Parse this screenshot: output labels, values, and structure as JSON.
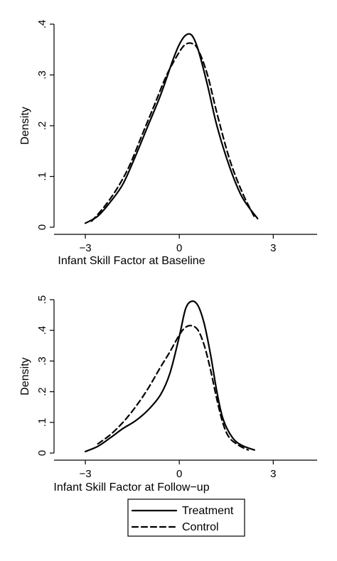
{
  "chart_data": [
    {
      "type": "line",
      "xlabel": "Infant Skill Factor at Baseline",
      "ylabel": "Density",
      "xlim": [
        -4,
        4.4
      ],
      "ylim": [
        0,
        0.4
      ],
      "xticks": [
        -3,
        0,
        3
      ],
      "xtick_labels": [
        "−3",
        "0",
        "3"
      ],
      "yticks": [
        0,
        0.1,
        0.2,
        0.3,
        0.4
      ],
      "ytick_labels": [
        "0",
        ".1",
        ".2",
        ".3",
        ".4"
      ],
      "grid": false,
      "series": [
        {
          "name": "Treatment",
          "dash": "solid",
          "x": [
            -3.0,
            -2.6,
            -2.2,
            -1.8,
            -1.4,
            -1.0,
            -0.6,
            -0.2,
            0.0,
            0.2,
            0.4,
            0.6,
            0.9,
            1.2,
            1.6,
            2.0,
            2.5
          ],
          "y": [
            0.008,
            0.022,
            0.05,
            0.085,
            0.14,
            0.2,
            0.26,
            0.33,
            0.36,
            0.378,
            0.378,
            0.35,
            0.28,
            0.2,
            0.12,
            0.06,
            0.017
          ]
        },
        {
          "name": "Control",
          "dash": "dashed",
          "x": [
            -2.8,
            -2.4,
            -2.0,
            -1.6,
            -1.2,
            -0.8,
            -0.4,
            0.0,
            0.2,
            0.4,
            0.6,
            0.9,
            1.2,
            1.6,
            2.0,
            2.4
          ],
          "y": [
            0.012,
            0.04,
            0.075,
            0.12,
            0.18,
            0.24,
            0.3,
            0.345,
            0.36,
            0.362,
            0.35,
            0.3,
            0.225,
            0.135,
            0.07,
            0.02
          ]
        }
      ]
    },
    {
      "type": "line",
      "xlabel": "Infant Skill Factor at Follow−up",
      "ylabel": "Density",
      "xlim": [
        -4,
        4.4
      ],
      "ylim": [
        0,
        0.5
      ],
      "xticks": [
        -3,
        0,
        3
      ],
      "xtick_labels": [
        "−3",
        "0",
        "3"
      ],
      "yticks": [
        0,
        0.1,
        0.2,
        0.3,
        0.4,
        0.5
      ],
      "ytick_labels": [
        "0",
        ".1",
        ".2",
        ".3",
        ".4",
        ".5"
      ],
      "grid": false,
      "series": [
        {
          "name": "Treatment",
          "dash": "solid",
          "x": [
            -3.0,
            -2.6,
            -2.2,
            -1.8,
            -1.4,
            -1.0,
            -0.6,
            -0.3,
            0.0,
            0.2,
            0.4,
            0.6,
            0.8,
            1.0,
            1.2,
            1.4,
            1.7,
            2.0,
            2.4
          ],
          "y": [
            0.005,
            0.022,
            0.05,
            0.08,
            0.105,
            0.14,
            0.19,
            0.26,
            0.38,
            0.47,
            0.495,
            0.48,
            0.42,
            0.32,
            0.2,
            0.11,
            0.05,
            0.025,
            0.01
          ]
        },
        {
          "name": "Control",
          "dash": "dashed",
          "x": [
            -2.6,
            -2.2,
            -1.8,
            -1.4,
            -1.0,
            -0.6,
            -0.3,
            0.0,
            0.2,
            0.4,
            0.6,
            0.8,
            1.0,
            1.2,
            1.4,
            1.6,
            1.9,
            2.2
          ],
          "y": [
            0.03,
            0.06,
            0.1,
            0.15,
            0.21,
            0.28,
            0.33,
            0.385,
            0.41,
            0.415,
            0.4,
            0.35,
            0.27,
            0.175,
            0.095,
            0.05,
            0.025,
            0.01
          ]
        }
      ]
    }
  ],
  "legend": {
    "placement": "bottom",
    "items": [
      {
        "label": "Treatment",
        "dash": "solid"
      },
      {
        "label": "Control",
        "dash": "dashed"
      }
    ]
  }
}
